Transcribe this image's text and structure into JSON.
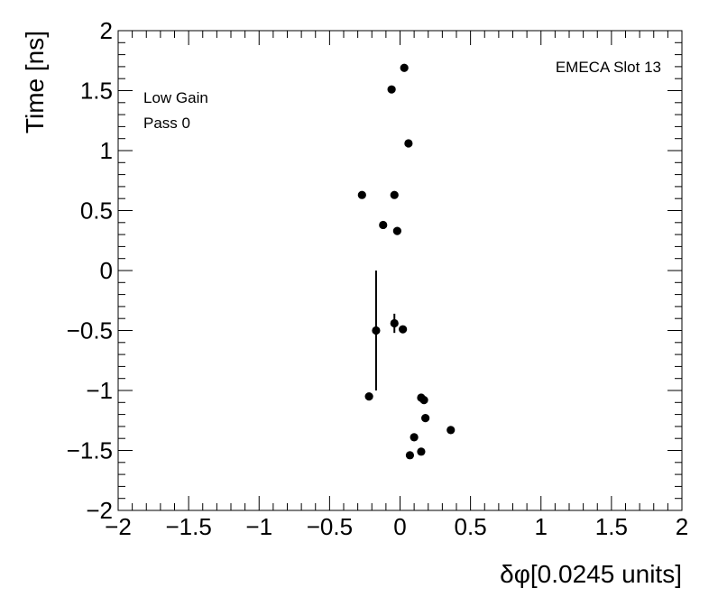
{
  "chart_data": {
    "type": "scatter",
    "title": "",
    "xlabel": "δφ[0.0245 units]",
    "ylabel": "Time [ns]",
    "xlim": [
      -2,
      2
    ],
    "ylim": [
      -2,
      2
    ],
    "grid": false,
    "legend": "none",
    "x_ticks": [
      -2,
      -1.5,
      -1,
      -0.5,
      0,
      0.5,
      1,
      1.5,
      2
    ],
    "y_ticks": [
      -2,
      -1.5,
      -1,
      -0.5,
      0,
      0.5,
      1,
      1.5,
      2
    ],
    "x_tick_labels": [
      "−2",
      "−1.5",
      "−1",
      "−0.5",
      "0",
      "0.5",
      "1",
      "1.5",
      "2"
    ],
    "y_tick_labels": [
      "−2",
      "−1.5",
      "−1",
      "−0.5",
      "0",
      "0.5",
      "1",
      "1.5",
      "2"
    ],
    "annotations": {
      "slot": "EMECA Slot 13",
      "gain": "Low Gain",
      "pass": "Pass 0"
    },
    "marker_color": "#000000",
    "points": [
      {
        "x": 0.03,
        "y": 1.69
      },
      {
        "x": -0.06,
        "y": 1.51
      },
      {
        "x": 0.06,
        "y": 1.06
      },
      {
        "x": -0.27,
        "y": 0.63
      },
      {
        "x": -0.04,
        "y": 0.63
      },
      {
        "x": -0.12,
        "y": 0.38
      },
      {
        "x": -0.02,
        "y": 0.33
      },
      {
        "x": -0.04,
        "y": -0.44,
        "yerr": 0.08
      },
      {
        "x": -0.17,
        "y": -0.5,
        "yerr": 0.5
      },
      {
        "x": 0.02,
        "y": -0.49
      },
      {
        "x": -0.22,
        "y": -1.05
      },
      {
        "x": 0.15,
        "y": -1.06
      },
      {
        "x": 0.17,
        "y": -1.08
      },
      {
        "x": 0.18,
        "y": -1.23
      },
      {
        "x": 0.36,
        "y": -1.33
      },
      {
        "x": 0.1,
        "y": -1.39
      },
      {
        "x": 0.15,
        "y": -1.51
      },
      {
        "x": 0.07,
        "y": -1.54
      }
    ]
  }
}
